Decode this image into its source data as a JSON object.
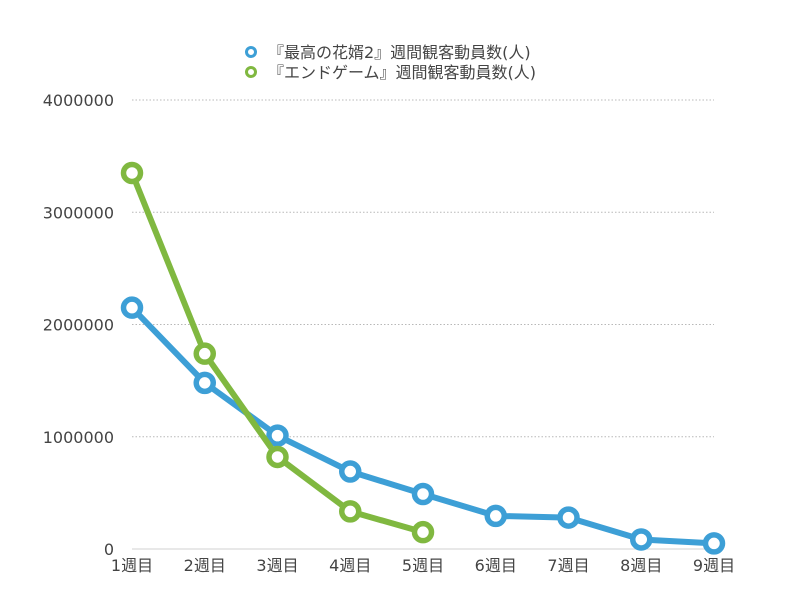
{
  "chart_data": {
    "type": "line",
    "categories": [
      "1週目",
      "2週目",
      "3週目",
      "4週目",
      "5週目",
      "6週目",
      "7週目",
      "8週目",
      "9週目"
    ],
    "series": [
      {
        "name": "『最高の花婿2』週間観客動員数(人)",
        "color": "#3d9fd6",
        "values": [
          2150000,
          1480000,
          1010000,
          690000,
          490000,
          295000,
          280000,
          85000,
          50000
        ]
      },
      {
        "name": "『エンドゲーム』週間観客動員数(人)",
        "color": "#80b840",
        "values": [
          3350000,
          1740000,
          820000,
          335000,
          150000,
          null,
          null,
          null,
          null
        ]
      }
    ],
    "yticks": [
      "0",
      "1000000",
      "2000000",
      "3000000",
      "4000000"
    ],
    "ylim": [
      0,
      4000000
    ],
    "grid": true,
    "legend_position": "top-center",
    "xlabel": "",
    "ylabel": ""
  }
}
